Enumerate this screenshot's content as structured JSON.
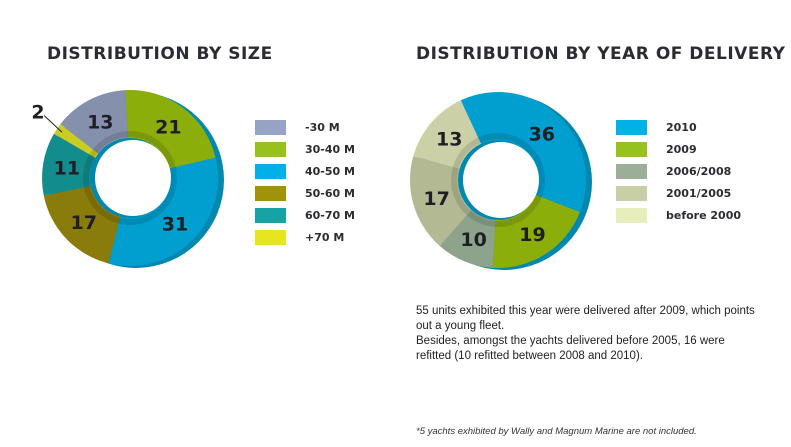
{
  "chart_data": [
    {
      "type": "pie",
      "title": "DISTRIBUTION BY SIZE",
      "categories": [
        "-30 M",
        "30-40 M",
        "40-50 M",
        "50-60 M",
        "60-70 M",
        "+70 M"
      ],
      "values": [
        13,
        21,
        31,
        17,
        11,
        2
      ],
      "colors": [
        "#97a3c4",
        "#97c11f",
        "#00b0e6",
        "#a09209",
        "#16a3a3",
        "#e6e51f"
      ],
      "slice_colors": [
        "#8590ac",
        "#8bae0b",
        "#009fcf",
        "#8a7c0a",
        "#128c8c",
        "#c9cc22"
      ]
    },
    {
      "type": "pie",
      "title": "DISTRIBUTION BY YEAR OF DELIVERY",
      "categories": [
        "2010",
        "2009",
        "2006/2008",
        "2001/2005",
        "before 2000"
      ],
      "values": [
        36,
        19,
        10,
        17,
        13
      ],
      "legend_note": "",
      "colors": [
        "#00b0e6",
        "#97c11f",
        "#9aae98",
        "#c8cfa6",
        "#e8edbc"
      ],
      "slice_colors": [
        "#009fcf",
        "#8bae0b",
        "#8ea38c",
        "#b3b993",
        "#cbd0a6"
      ]
    }
  ],
  "note": {
    "line1": "55 units exhibited this year were delivered after 2009, which points out a young fleet.",
    "line2": "Besides, amongst the yachts delivered before 2005, 16 were refitted (10 refitted between 2008 and 2010)."
  },
  "footnote": "*5 yachts exhibited by Wally and Magnum Marine are not included."
}
